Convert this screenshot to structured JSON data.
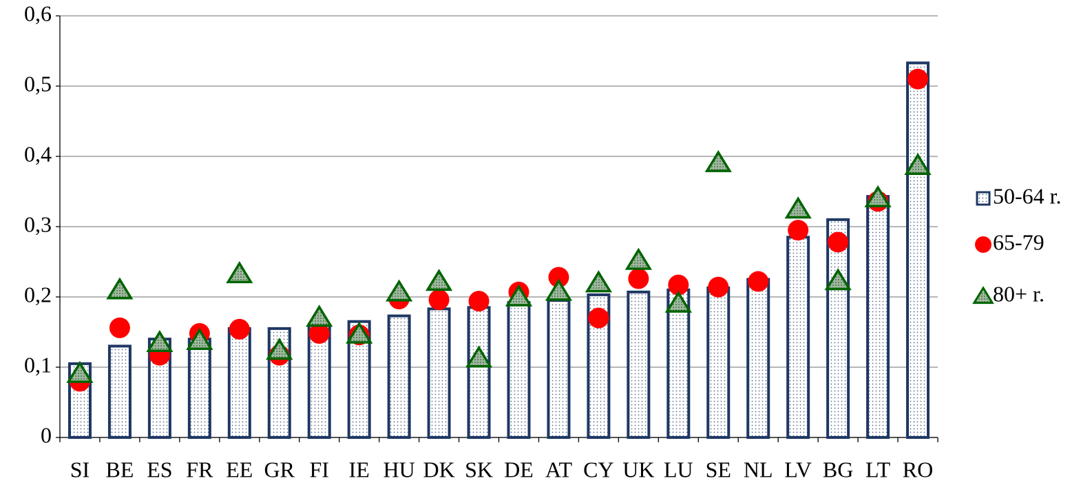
{
  "chart_data": {
    "type": "bar",
    "categories": [
      "SI",
      "BE",
      "ES",
      "FR",
      "EE",
      "GR",
      "FI",
      "IE",
      "HU",
      "DK",
      "SK",
      "DE",
      "AT",
      "CY",
      "UK",
      "LU",
      "SE",
      "NL",
      "LV",
      "BG",
      "LT",
      "RO"
    ],
    "series": [
      {
        "name": "50-64 r.",
        "color": "#1f3864",
        "marker": "bar",
        "values": [
          0.105,
          0.13,
          0.14,
          0.14,
          0.155,
          0.155,
          0.16,
          0.165,
          0.173,
          0.183,
          0.185,
          0.192,
          0.195,
          0.203,
          0.207,
          0.21,
          0.213,
          0.225,
          0.285,
          0.31,
          0.343,
          0.533
        ]
      },
      {
        "name": "65-79",
        "color": "#ff0000",
        "marker": "circle",
        "values": [
          0.08,
          0.156,
          0.117,
          0.148,
          0.154,
          0.117,
          0.148,
          0.146,
          0.197,
          0.196,
          0.194,
          0.207,
          0.228,
          0.17,
          0.226,
          0.217,
          0.214,
          0.222,
          0.295,
          0.278,
          0.336,
          0.51
        ]
      },
      {
        "name": "80+ r.",
        "color": "#006400",
        "marker": "triangle",
        "values": [
          0.091,
          0.21,
          0.135,
          0.138,
          0.233,
          0.124,
          0.171,
          0.147,
          0.207,
          0.222,
          0.113,
          0.2,
          0.208,
          0.22,
          0.252,
          0.191,
          0.391,
          null,
          0.325,
          0.223,
          0.341,
          0.387
        ]
      }
    ],
    "ylim": [
      0,
      0.6
    ],
    "yticks": [
      0,
      {
        "value": 0.1,
        "label": "0,1"
      },
      {
        "value": 0.2,
        "label": "0,2"
      },
      {
        "value": 0.3,
        "label": "0,3"
      },
      {
        "value": 0.4,
        "label": "0,4"
      },
      {
        "value": 0.5,
        "label": "0,5"
      },
      {
        "value": 0.6,
        "label": "0,6"
      }
    ],
    "grid": true,
    "legend": "right"
  }
}
